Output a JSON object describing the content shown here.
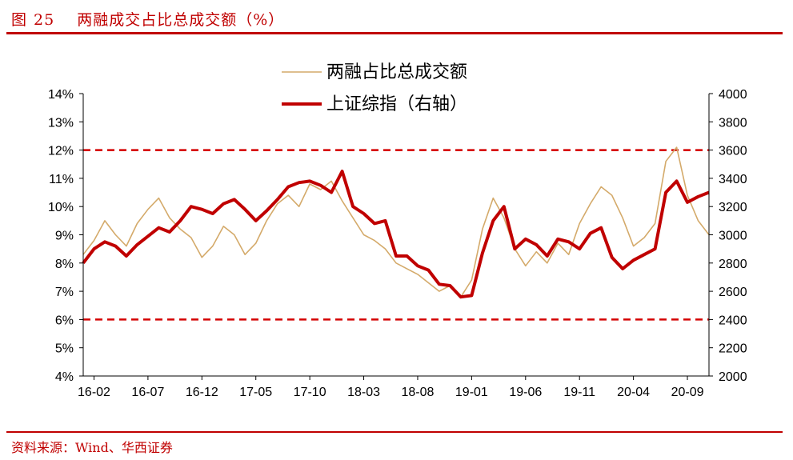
{
  "figure": {
    "label": "图",
    "number": "25",
    "title": "两融成交占比总成交额（%）",
    "source": "资料来源：Wind、华西证券"
  },
  "colors": {
    "accent_red": "#c00000",
    "margin_line": "#d4aa6a",
    "index_line": "#c00000",
    "ref_line": "#d40000"
  },
  "chart_data": {
    "type": "line",
    "title": "",
    "legend": {
      "placement": "top-center"
    },
    "grid": false,
    "x_tick_labels": [
      "16-02",
      "16-07",
      "16-12",
      "17-05",
      "17-10",
      "18-03",
      "18-08",
      "19-01",
      "19-06",
      "19-11",
      "20-04",
      "20-09"
    ],
    "x_range": [
      "2016-01",
      "2020-11"
    ],
    "y_left": {
      "min": 4,
      "max": 14,
      "step": 1,
      "unit": "%",
      "tick_labels": [
        "4%",
        "5%",
        "6%",
        "7%",
        "8%",
        "9%",
        "10%",
        "11%",
        "12%",
        "13%",
        "14%"
      ]
    },
    "y_right": {
      "min": 2000,
      "max": 4000,
      "step": 200,
      "tick_labels": [
        "2000",
        "2200",
        "2400",
        "2600",
        "2800",
        "3000",
        "3200",
        "3400",
        "3600",
        "3800",
        "4000"
      ]
    },
    "reference_lines": [
      {
        "axis": "left",
        "value": 12,
        "style": "dashed"
      },
      {
        "axis": "left",
        "value": 6,
        "style": "dashed"
      }
    ],
    "series": [
      {
        "name": "两融占比总成交额",
        "axis": "left",
        "x": [
          "2016-01",
          "2016-02",
          "2016-03",
          "2016-04",
          "2016-05",
          "2016-06",
          "2016-07",
          "2016-08",
          "2016-09",
          "2016-10",
          "2016-11",
          "2016-12",
          "2017-01",
          "2017-02",
          "2017-03",
          "2017-04",
          "2017-05",
          "2017-06",
          "2017-07",
          "2017-08",
          "2017-09",
          "2017-10",
          "2017-11",
          "2017-12",
          "2018-01",
          "2018-02",
          "2018-03",
          "2018-04",
          "2018-05",
          "2018-06",
          "2018-07",
          "2018-08",
          "2018-09",
          "2018-10",
          "2018-11",
          "2018-12",
          "2019-01",
          "2019-02",
          "2019-03",
          "2019-04",
          "2019-05",
          "2019-06",
          "2019-07",
          "2019-08",
          "2019-09",
          "2019-10",
          "2019-11",
          "2019-12",
          "2020-01",
          "2020-02",
          "2020-03",
          "2020-04",
          "2020-05",
          "2020-06",
          "2020-07",
          "2020-08",
          "2020-09",
          "2020-10",
          "2020-11"
        ],
        "values": [
          8.3,
          8.8,
          9.5,
          9.0,
          8.6,
          9.4,
          9.9,
          10.3,
          9.6,
          9.2,
          8.9,
          8.2,
          8.6,
          9.3,
          9.0,
          8.3,
          8.7,
          9.5,
          10.1,
          10.4,
          10.0,
          10.8,
          10.6,
          10.9,
          10.2,
          9.6,
          9.0,
          8.8,
          8.5,
          8.0,
          7.8,
          7.6,
          7.3,
          7.0,
          7.2,
          6.8,
          7.4,
          9.2,
          10.3,
          9.6,
          8.5,
          7.9,
          8.4,
          8.0,
          8.7,
          8.3,
          9.4,
          10.1,
          10.7,
          10.4,
          9.6,
          8.6,
          8.9,
          9.4,
          11.6,
          12.1,
          10.4,
          9.5,
          9.0
        ]
      },
      {
        "name": "上证综指（右轴）",
        "axis": "right",
        "x": [
          "2016-01",
          "2016-02",
          "2016-03",
          "2016-04",
          "2016-05",
          "2016-06",
          "2016-07",
          "2016-08",
          "2016-09",
          "2016-10",
          "2016-11",
          "2016-12",
          "2017-01",
          "2017-02",
          "2017-03",
          "2017-04",
          "2017-05",
          "2017-06",
          "2017-07",
          "2017-08",
          "2017-09",
          "2017-10",
          "2017-11",
          "2017-12",
          "2018-01",
          "2018-02",
          "2018-03",
          "2018-04",
          "2018-05",
          "2018-06",
          "2018-07",
          "2018-08",
          "2018-09",
          "2018-10",
          "2018-11",
          "2018-12",
          "2019-01",
          "2019-02",
          "2019-03",
          "2019-04",
          "2019-05",
          "2019-06",
          "2019-07",
          "2019-08",
          "2019-09",
          "2019-10",
          "2019-11",
          "2019-12",
          "2020-01",
          "2020-02",
          "2020-03",
          "2020-04",
          "2020-05",
          "2020-06",
          "2020-07",
          "2020-08",
          "2020-09",
          "2020-10",
          "2020-11"
        ],
        "values": [
          2800,
          2900,
          2950,
          2920,
          2850,
          2930,
          2990,
          3050,
          3020,
          3100,
          3200,
          3180,
          3150,
          3220,
          3250,
          3180,
          3100,
          3170,
          3250,
          3340,
          3370,
          3380,
          3350,
          3300,
          3450,
          3200,
          3150,
          3080,
          3100,
          2850,
          2850,
          2780,
          2750,
          2650,
          2640,
          2560,
          2570,
          2870,
          3100,
          3200,
          2900,
          2970,
          2930,
          2850,
          2970,
          2950,
          2900,
          3010,
          3050,
          2840,
          2760,
          2820,
          2860,
          2900,
          3300,
          3380,
          3230,
          3270,
          3300
        ]
      }
    ]
  }
}
